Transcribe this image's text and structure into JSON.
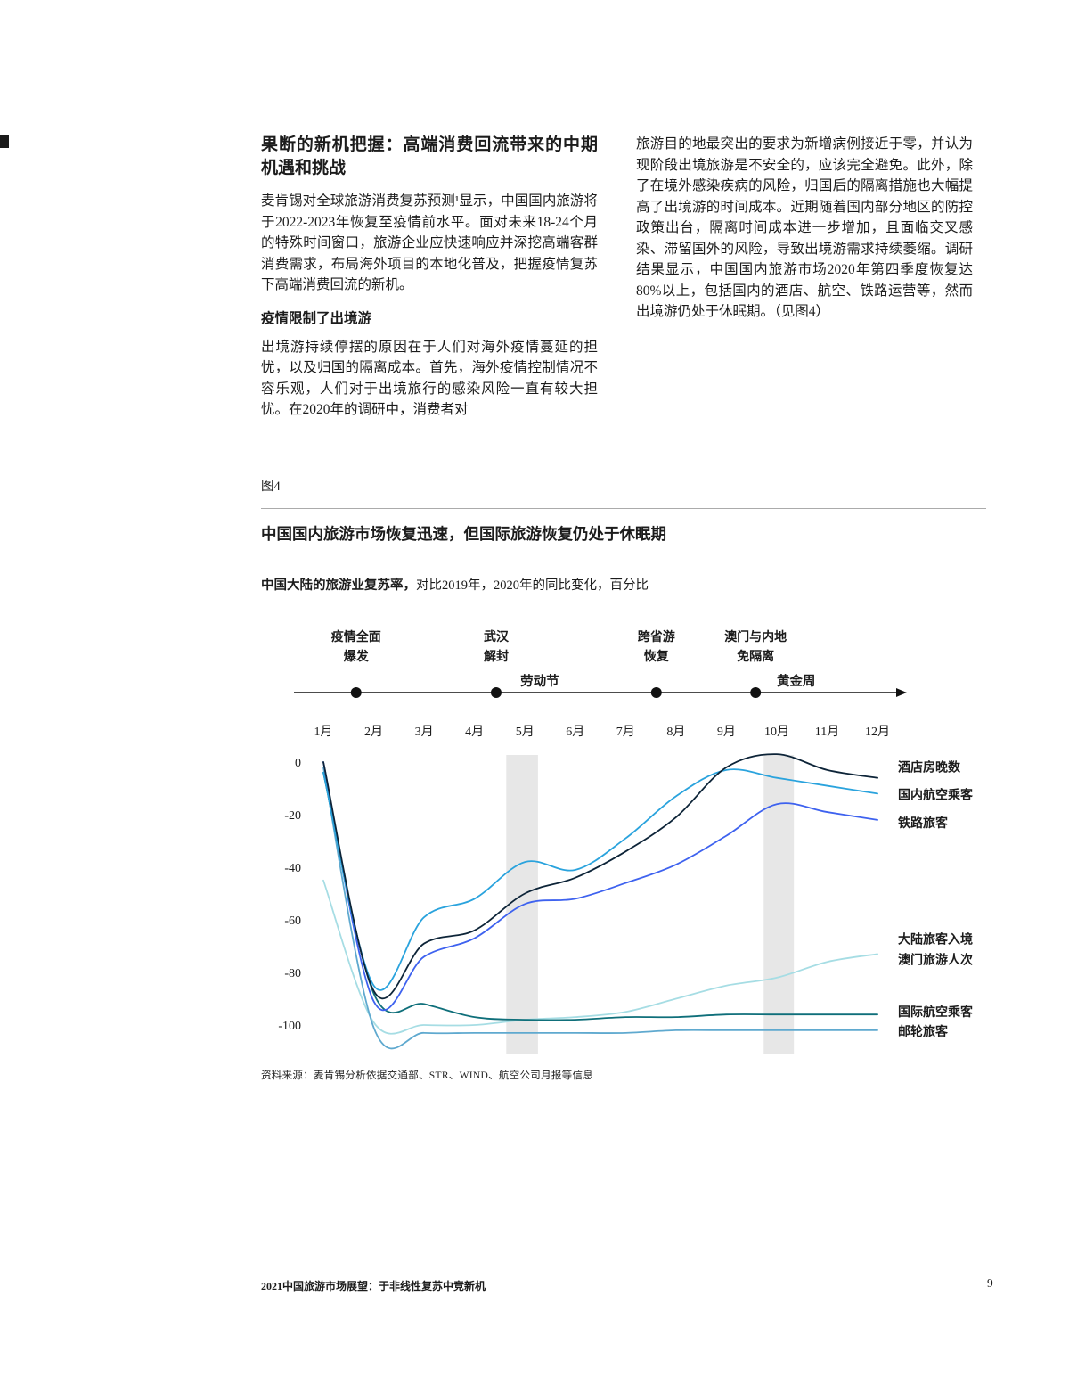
{
  "page": {
    "footer_title": "2021中国旅游市场展望：于非线性复苏中竞新机",
    "page_number": "9"
  },
  "article": {
    "heading": "果断的新机把握：高端消费回流带来的中期机遇和挑战",
    "para1": "麦肯锡对全球旅游消费复苏预测¹显示，中国国内旅游将于2022-2023年恢复至疫情前水平。面对未来18-24个月的特殊时间窗口，旅游企业应快速响应并深挖高端客群消费需求，布局海外项目的本地化普及，把握疫情复苏下高端消费回流的新机。",
    "subheading": "疫情限制了出境游",
    "para2": "出境游持续停摆的原因在于人们对海外疫情蔓延的担忧，以及归国的隔离成本。首先，海外疫情控制情况不容乐观，人们对于出境旅行的感染风险一直有较大担忧。在2020年的调研中，消费者对",
    "para3": "旅游目的地最突出的要求为新增病例接近于零，并认为现阶段出境旅游是不安全的，应该完全避免。此外，除了在境外感染疾病的风险，归国后的隔离措施也大幅提高了出境游的时间成本。近期随着国内部分地区的防控政策出台，隔离时间成本进一步增加，且面临交叉感染、滞留国外的风险，导致出境游需求持续萎缩。调研结果显示，中国国内旅游市场2020年第四季度恢复达80%以上，包括国内的酒店、航空、铁路运营等，然而出境游仍处于休眠期。（见图4）"
  },
  "figure": {
    "label": "图4",
    "title": "中国国内旅游市场恢复迅速，但国际旅游恢复仍处于休眠期",
    "subtitle_bold": "中国大陆的旅游业复苏率，",
    "subtitle_rest": "对比2019年，2020年的同比变化，百分比",
    "source": "资料来源：麦肯锡分析依据交通部、STR、WIND、航空公司月报等信息"
  },
  "chart_data": {
    "type": "line",
    "title": "中国大陆的旅游业复苏率，对比2019年，2020年的同比变化，百分比",
    "categories": [
      "1月",
      "2月",
      "3月",
      "4月",
      "5月",
      "6月",
      "7月",
      "8月",
      "9月",
      "10月",
      "11月",
      "12月"
    ],
    "yticks": [
      0,
      -20,
      -40,
      -60,
      -80,
      -100
    ],
    "ylim": [
      -110,
      5
    ],
    "grid": false,
    "legend_position": "right-of-line-ends",
    "band_color": "#e7e7e7",
    "bands": [
      {
        "name": "labor-day-holiday",
        "from": 4.63,
        "to": 5.26
      },
      {
        "name": "golden-week-holiday",
        "from": 9.74,
        "to": 10.34
      }
    ],
    "events": [
      {
        "name": "outbreak",
        "month": 1.65,
        "lines": [
          "疫情全面",
          "爆发"
        ]
      },
      {
        "name": "wuhan-reopen",
        "month": 4.43,
        "lines": [
          "武汉",
          "解封"
        ]
      },
      {
        "name": "labor-day",
        "month": 4.91,
        "lines": [
          "劳动节"
        ],
        "inline": true
      },
      {
        "name": "cross-province-travel-resume",
        "month": 7.61,
        "lines": [
          "跨省游",
          "恢复"
        ]
      },
      {
        "name": "macau-mainland-quarantine-free",
        "month": 9.58,
        "lines": [
          "澳门与内地",
          "免隔离"
        ]
      },
      {
        "name": "golden-week",
        "month": 10.0,
        "lines": [
          "黄金周"
        ],
        "inline": true
      }
    ],
    "series": [
      {
        "name": "hotel-room-nights",
        "label_lines": [
          "酒店房晚数"
        ],
        "color": "#0d2438",
        "label_dy": -7,
        "values": [
          0,
          -87,
          -69,
          -64,
          -50,
          -44,
          -34,
          -21,
          -2,
          3,
          -3,
          -6
        ]
      },
      {
        "name": "domestic-air-passengers",
        "label_lines": [
          "国内航空乘客"
        ],
        "color": "#2aa3dd",
        "label_dy": 6,
        "values": [
          -4,
          -85,
          -59,
          -52,
          -38,
          -41,
          -29,
          -13,
          -3,
          -6,
          -9,
          -12
        ]
      },
      {
        "name": "rail-passengers",
        "label_lines": [
          "铁路旅客"
        ],
        "color": "#3e62ef",
        "label_dy": 8,
        "values": [
          0,
          -91,
          -74,
          -67,
          -54,
          -52,
          -46,
          -39,
          -28,
          -16,
          -19,
          -22
        ]
      },
      {
        "name": "mainland-visitors-to-macau",
        "label_lines": [
          "大陆旅客入境",
          "澳门旅游人次"
        ],
        "color": "#a6dde4",
        "label_dy": -12,
        "values": [
          -45,
          -99,
          -100,
          -100,
          -98,
          -97,
          -95,
          -90,
          -85,
          -82,
          -76,
          -73
        ]
      },
      {
        "name": "international-air-passengers",
        "label_lines": [
          "国际航空乘客"
        ],
        "color": "#0f6f7a",
        "label_dy": 2,
        "values": [
          -4,
          -88,
          -92,
          -97,
          -98,
          -98,
          -97,
          -97,
          -96,
          -96,
          -96,
          -96
        ]
      },
      {
        "name": "cruise-passengers",
        "label_lines": [
          "邮轮旅客"
        ],
        "color": "#5fa9cf",
        "label_dy": 6,
        "values": [
          -2,
          -101,
          -103,
          -103,
          -103,
          -103,
          -103,
          -102,
          -102,
          -102,
          -102,
          -102
        ]
      }
    ],
    "draw_order": [
      3,
      5,
      4,
      2,
      1,
      0
    ]
  }
}
